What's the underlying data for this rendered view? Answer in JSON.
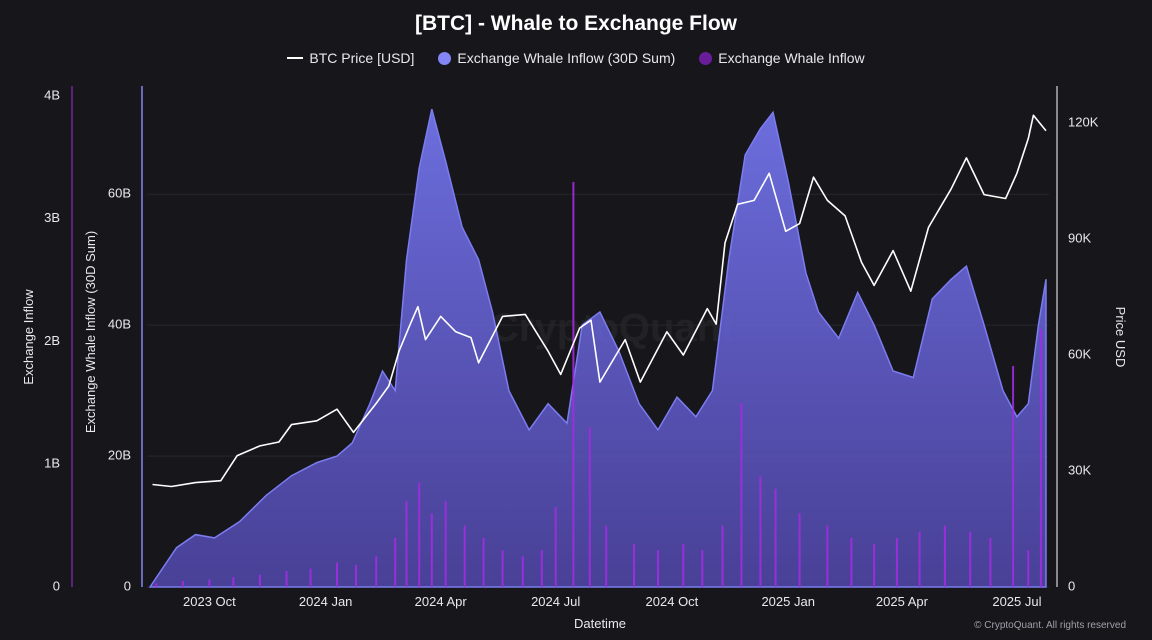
{
  "title": "[BTC] - Whale to Exchange Flow",
  "watermark": "CryptoQuant",
  "credit": "© CryptoQuant. All rights reserved",
  "colors": {
    "background": "#16161b",
    "price": "#ffffff",
    "inflow_30d": "#7b7cf0",
    "inflow_daily": "#a12de0",
    "grid": "#26262e"
  },
  "chart_data": {
    "type": "area",
    "title": "[BTC] - Whale to Exchange Flow",
    "xlabel": "Datetime",
    "legend_placement": "top-center",
    "grid": true,
    "x_ticks": [
      "2023 Oct",
      "2024 Jan",
      "2024 Apr",
      "2024 Jul",
      "2024 Oct",
      "2025 Jan",
      "2025 Apr",
      "2025 Jul"
    ],
    "x_range": [
      "2023-08-15",
      "2025-07-24"
    ],
    "axes": {
      "inflow": {
        "label": "Exchange Inflow",
        "range": [
          0,
          4000000000
        ],
        "ticks": [
          "0",
          "1B",
          "2B",
          "3B",
          "4B"
        ]
      },
      "inflow_30d": {
        "label": "Exchange Whale Inflow (30D Sum)",
        "range": [
          0,
          75000000000
        ],
        "ticks": [
          "0",
          "20B",
          "40B",
          "60B"
        ]
      },
      "price": {
        "label": "Price USD",
        "range": [
          0,
          127000
        ],
        "ticks": [
          "0",
          "30K",
          "60K",
          "90K",
          "120K"
        ]
      }
    },
    "series": [
      {
        "name": "BTC Price [USD]",
        "axis": "price",
        "type": "line",
        "points": [
          [
            "2023-08-17",
            26500
          ],
          [
            "2023-09-01",
            26000
          ],
          [
            "2023-09-20",
            27000
          ],
          [
            "2023-10-10",
            27500
          ],
          [
            "2023-10-23",
            34000
          ],
          [
            "2023-11-10",
            36500
          ],
          [
            "2023-11-25",
            37500
          ],
          [
            "2023-12-05",
            42000
          ],
          [
            "2023-12-25",
            43000
          ],
          [
            "2024-01-10",
            46000
          ],
          [
            "2024-01-23",
            40000
          ],
          [
            "2024-02-10",
            47500
          ],
          [
            "2024-02-20",
            52000
          ],
          [
            "2024-02-28",
            61000
          ],
          [
            "2024-03-08",
            68000
          ],
          [
            "2024-03-14",
            72500
          ],
          [
            "2024-03-20",
            64000
          ],
          [
            "2024-04-01",
            70000
          ],
          [
            "2024-04-13",
            66000
          ],
          [
            "2024-04-25",
            64500
          ],
          [
            "2024-05-01",
            58000
          ],
          [
            "2024-05-20",
            70000
          ],
          [
            "2024-06-07",
            70500
          ],
          [
            "2024-06-25",
            61000
          ],
          [
            "2024-07-05",
            55000
          ],
          [
            "2024-07-20",
            67000
          ],
          [
            "2024-07-29",
            69000
          ],
          [
            "2024-08-05",
            53000
          ],
          [
            "2024-08-25",
            64000
          ],
          [
            "2024-09-06",
            53000
          ],
          [
            "2024-09-27",
            66000
          ],
          [
            "2024-10-10",
            60000
          ],
          [
            "2024-10-29",
            72000
          ],
          [
            "2024-11-05",
            68000
          ],
          [
            "2024-11-12",
            89000
          ],
          [
            "2024-11-22",
            99000
          ],
          [
            "2024-12-05",
            100000
          ],
          [
            "2024-12-17",
            107000
          ],
          [
            "2024-12-30",
            92000
          ],
          [
            "2025-01-10",
            94000
          ],
          [
            "2025-01-21",
            106000
          ],
          [
            "2025-02-01",
            100000
          ],
          [
            "2025-02-15",
            96000
          ],
          [
            "2025-02-28",
            84000
          ],
          [
            "2025-03-10",
            78000
          ],
          [
            "2025-03-25",
            87000
          ],
          [
            "2025-04-08",
            76500
          ],
          [
            "2025-04-22",
            93000
          ],
          [
            "2025-05-10",
            103000
          ],
          [
            "2025-05-22",
            111000
          ],
          [
            "2025-06-05",
            101500
          ],
          [
            "2025-06-22",
            100500
          ],
          [
            "2025-07-01",
            107000
          ],
          [
            "2025-07-10",
            116000
          ],
          [
            "2025-07-14",
            122000
          ],
          [
            "2025-07-24",
            118000
          ]
        ]
      },
      {
        "name": "Exchange Whale Inflow (30D Sum)",
        "axis": "inflow_30d",
        "type": "area",
        "points": [
          [
            "2023-08-15",
            0
          ],
          [
            "2023-08-22",
            2000000000
          ],
          [
            "2023-09-05",
            6000000000
          ],
          [
            "2023-09-20",
            8000000000
          ],
          [
            "2023-10-05",
            7500000000
          ],
          [
            "2023-10-25",
            10000000000
          ],
          [
            "2023-11-15",
            14000000000
          ],
          [
            "2023-12-05",
            17000000000
          ],
          [
            "2023-12-25",
            19000000000
          ],
          [
            "2024-01-10",
            20000000000
          ],
          [
            "2024-01-22",
            22000000000
          ],
          [
            "2024-02-05",
            28000000000
          ],
          [
            "2024-02-15",
            33000000000
          ],
          [
            "2024-02-25",
            30000000000
          ],
          [
            "2024-03-05",
            50000000000
          ],
          [
            "2024-03-15",
            64000000000
          ],
          [
            "2024-03-25",
            73000000000
          ],
          [
            "2024-04-05",
            65000000000
          ],
          [
            "2024-04-18",
            55000000000
          ],
          [
            "2024-05-01",
            50000000000
          ],
          [
            "2024-05-12",
            42000000000
          ],
          [
            "2024-05-25",
            30000000000
          ],
          [
            "2024-06-10",
            24000000000
          ],
          [
            "2024-06-25",
            28000000000
          ],
          [
            "2024-07-10",
            25000000000
          ],
          [
            "2024-07-22",
            40000000000
          ],
          [
            "2024-08-05",
            42000000000
          ],
          [
            "2024-08-20",
            36000000000
          ],
          [
            "2024-09-05",
            28000000000
          ],
          [
            "2024-09-20",
            24000000000
          ],
          [
            "2024-10-05",
            29000000000
          ],
          [
            "2024-10-20",
            26000000000
          ],
          [
            "2024-11-02",
            30000000000
          ],
          [
            "2024-11-15",
            50000000000
          ],
          [
            "2024-11-28",
            66000000000
          ],
          [
            "2024-12-10",
            70000000000
          ],
          [
            "2024-12-20",
            72500000000
          ],
          [
            "2025-01-01",
            62000000000
          ],
          [
            "2025-01-15",
            48000000000
          ],
          [
            "2025-01-25",
            42000000000
          ],
          [
            "2025-02-10",
            38000000000
          ],
          [
            "2025-02-25",
            45000000000
          ],
          [
            "2025-03-10",
            40000000000
          ],
          [
            "2025-03-25",
            33000000000
          ],
          [
            "2025-04-10",
            32000000000
          ],
          [
            "2025-04-25",
            44000000000
          ],
          [
            "2025-05-10",
            47000000000
          ],
          [
            "2025-05-22",
            49000000000
          ],
          [
            "2025-06-05",
            40000000000
          ],
          [
            "2025-06-20",
            30000000000
          ],
          [
            "2025-07-01",
            26000000000
          ],
          [
            "2025-07-10",
            28000000000
          ],
          [
            "2025-07-18",
            40000000000
          ],
          [
            "2025-07-24",
            47000000000
          ]
        ]
      },
      {
        "name": "Exchange Whale Inflow",
        "axis": "inflow",
        "type": "bar",
        "points": [
          [
            "2023-08-20",
            30000000
          ],
          [
            "2023-09-10",
            50000000
          ],
          [
            "2023-10-01",
            60000000
          ],
          [
            "2023-10-20",
            80000000
          ],
          [
            "2023-11-10",
            100000000
          ],
          [
            "2023-12-01",
            130000000
          ],
          [
            "2023-12-20",
            150000000
          ],
          [
            "2024-01-10",
            200000000
          ],
          [
            "2024-01-25",
            180000000
          ],
          [
            "2024-02-10",
            250000000
          ],
          [
            "2024-02-25",
            400000000
          ],
          [
            "2024-03-05",
            700000000
          ],
          [
            "2024-03-15",
            850000000
          ],
          [
            "2024-03-25",
            600000000
          ],
          [
            "2024-04-05",
            700000000
          ],
          [
            "2024-04-20",
            500000000
          ],
          [
            "2024-05-05",
            400000000
          ],
          [
            "2024-05-20",
            300000000
          ],
          [
            "2024-06-05",
            250000000
          ],
          [
            "2024-06-20",
            300000000
          ],
          [
            "2024-07-01",
            650000000
          ],
          [
            "2024-07-15",
            3300000000
          ],
          [
            "2024-07-28",
            1300000000
          ],
          [
            "2024-08-10",
            500000000
          ],
          [
            "2024-09-01",
            350000000
          ],
          [
            "2024-09-20",
            300000000
          ],
          [
            "2024-10-10",
            350000000
          ],
          [
            "2024-10-25",
            300000000
          ],
          [
            "2024-11-10",
            500000000
          ],
          [
            "2024-11-25",
            1500000000
          ],
          [
            "2024-12-10",
            900000000
          ],
          [
            "2024-12-22",
            800000000
          ],
          [
            "2025-01-10",
            600000000
          ],
          [
            "2025-02-01",
            500000000
          ],
          [
            "2025-02-20",
            400000000
          ],
          [
            "2025-03-10",
            350000000
          ],
          [
            "2025-03-28",
            400000000
          ],
          [
            "2025-04-15",
            450000000
          ],
          [
            "2025-05-05",
            500000000
          ],
          [
            "2025-05-25",
            450000000
          ],
          [
            "2025-06-10",
            400000000
          ],
          [
            "2025-06-28",
            1800000000
          ],
          [
            "2025-07-10",
            300000000
          ],
          [
            "2025-07-20",
            2100000000
          ]
        ]
      }
    ]
  }
}
